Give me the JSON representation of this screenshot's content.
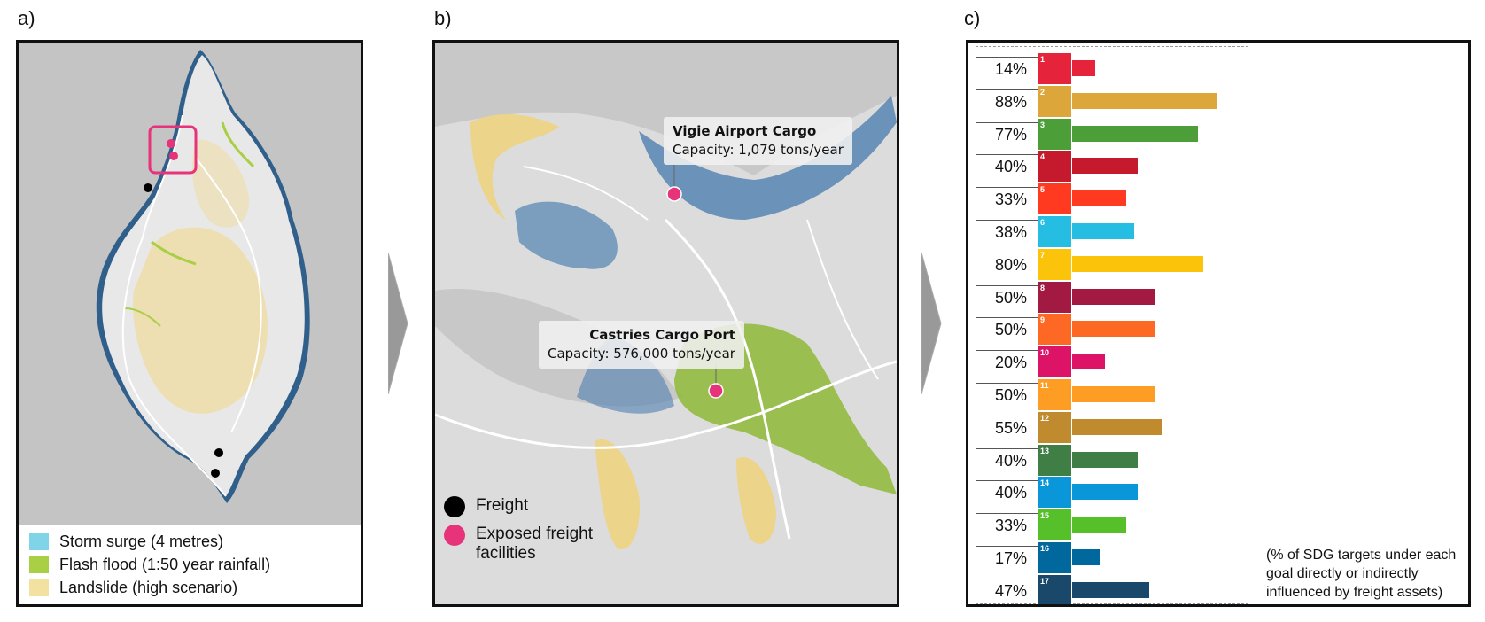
{
  "panel_labels": {
    "a": "a)",
    "b": "b)",
    "c": "c)"
  },
  "panel_a": {
    "legend": [
      {
        "label": "Storm surge (4 metres)",
        "color": "#7fd4e8"
      },
      {
        "label": "Flash flood (1:50 year rainfall)",
        "color": "#a9cf45"
      },
      {
        "label": "Landslide (high scenario)",
        "color": "#f2e1a0"
      }
    ]
  },
  "panel_b": {
    "callouts": [
      {
        "title": "Vigie Airport Cargo",
        "subtitle": "Capacity: 1,079 tons/year"
      },
      {
        "title": "Castries Cargo Port",
        "subtitle": "Capacity: 576,000 tons/year"
      }
    ],
    "legend": [
      {
        "label": "Freight",
        "color": "#000000"
      },
      {
        "label": "Exposed freight facilities",
        "color": "#e6337a"
      }
    ]
  },
  "chart_data": {
    "type": "bar",
    "orientation": "horizontal",
    "categories": [
      "SDG 1",
      "SDG 2",
      "SDG 3",
      "SDG 4",
      "SDG 5",
      "SDG 6",
      "SDG 7",
      "SDG 8",
      "SDG 9",
      "SDG 10",
      "SDG 11",
      "SDG 12",
      "SDG 13",
      "SDG 14",
      "SDG 15",
      "SDG 16",
      "SDG 17"
    ],
    "values": [
      14,
      88,
      77,
      40,
      33,
      38,
      80,
      50,
      50,
      20,
      50,
      55,
      40,
      40,
      33,
      17,
      47
    ],
    "labels": [
      "14%",
      "88%",
      "77%",
      "40%",
      "33%",
      "38%",
      "80%",
      "50%",
      "50%",
      "20%",
      "50%",
      "55%",
      "40%",
      "40%",
      "33%",
      "17%",
      "47%"
    ],
    "icon_numbers": [
      "1",
      "2",
      "3",
      "4",
      "5",
      "6",
      "7",
      "8",
      "9",
      "10",
      "11",
      "12",
      "13",
      "14",
      "15",
      "16",
      "17"
    ],
    "colors": [
      "#e5243b",
      "#dda63a",
      "#4c9f38",
      "#c5192d",
      "#ff3a21",
      "#26bde2",
      "#fcc30b",
      "#a21942",
      "#fd6925",
      "#dd1367",
      "#fd9d24",
      "#bf8b2e",
      "#3f7e44",
      "#0a97d9",
      "#56c02b",
      "#00689d",
      "#19486a"
    ],
    "xlim": [
      0,
      100
    ],
    "note": "(% of SDG targets under each goal directly or indirectly influenced by freight assets)"
  }
}
